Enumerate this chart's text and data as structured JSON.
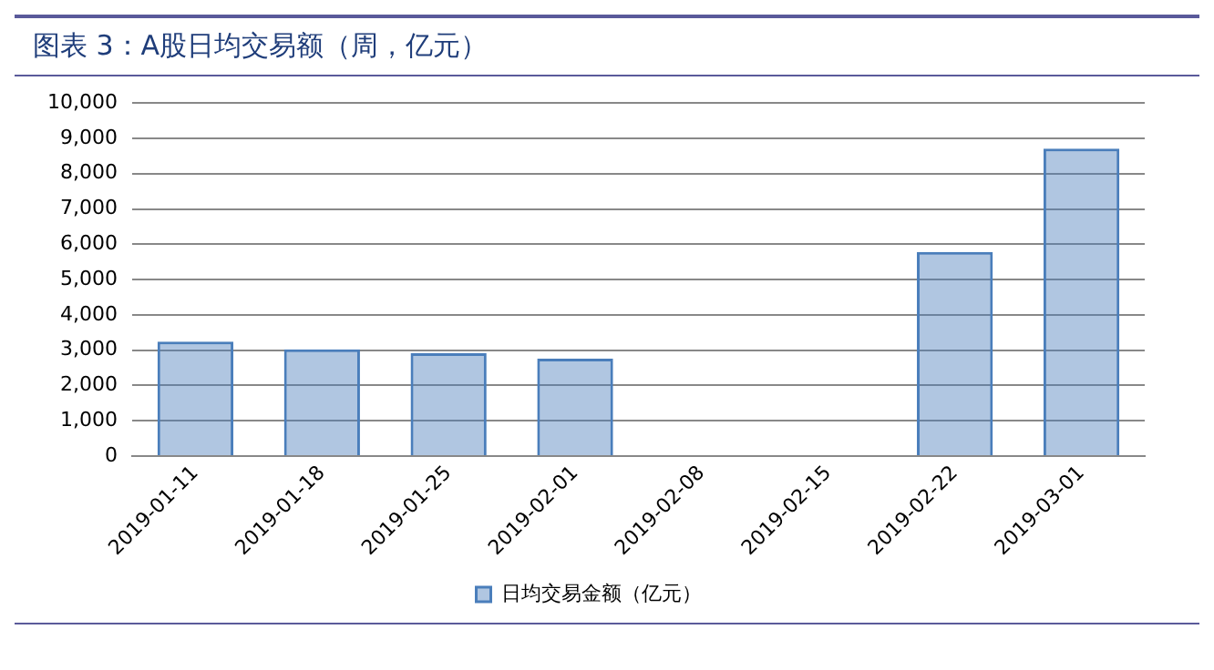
{
  "chart_data": {
    "type": "bar",
    "title": "图表 3：A股日均交易额（周，亿元）",
    "categories": [
      "2019-01-11",
      "2019-01-18",
      "2019-01-25",
      "2019-02-01",
      "2019-02-08",
      "2019-02-15",
      "2019-02-22",
      "2019-03-01"
    ],
    "series": [
      {
        "name": "日均交易金额（亿元）",
        "color": "#4a7ebb",
        "values": [
          3240,
          3020,
          2910,
          2760,
          null,
          null,
          5780,
          8710
        ]
      }
    ],
    "ylim": [
      0,
      10000
    ],
    "yticks": [
      0,
      {
        "value": 1000,
        "label": "1,000"
      },
      {
        "value": 2000,
        "label": "2,000"
      },
      {
        "value": 3000,
        "label": "3,000"
      },
      {
        "value": 4000,
        "label": "4,000"
      },
      {
        "value": 5000,
        "label": "5,000"
      },
      {
        "value": 6000,
        "label": "6,000"
      },
      {
        "value": 7000,
        "label": "7,000"
      },
      {
        "value": 8000,
        "label": "8,000"
      },
      {
        "value": 9000,
        "label": "9,000"
      },
      {
        "value": 10000,
        "label": "10,000"
      }
    ],
    "grid": "y",
    "legend": "bottom"
  }
}
